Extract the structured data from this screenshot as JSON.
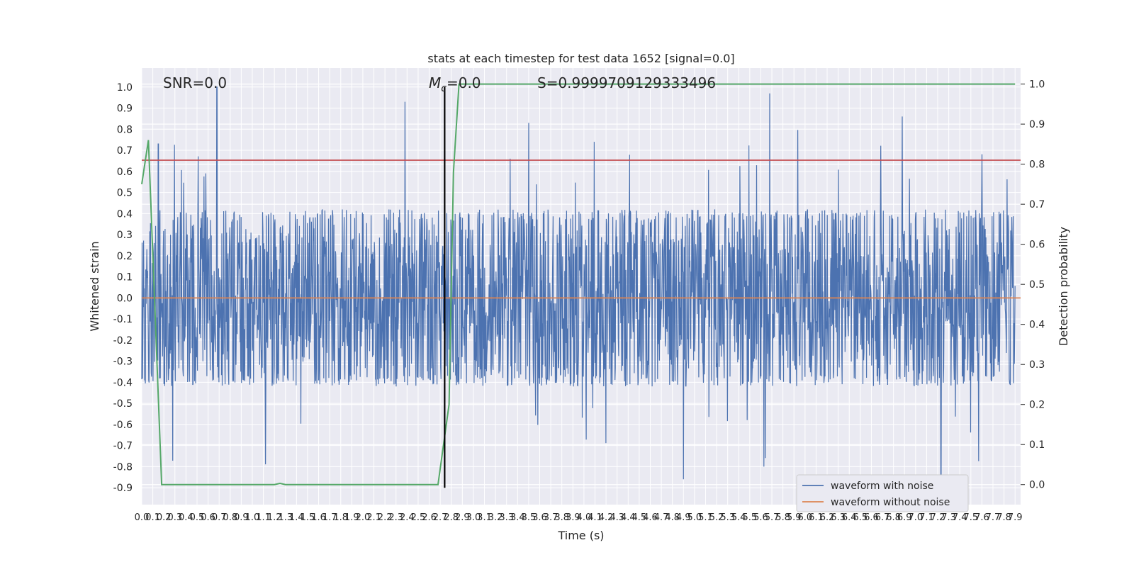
{
  "chart_data": {
    "type": "line",
    "title": "stats at each timestep for test data 1652 [signal=0.0]",
    "xlabel": "Time (s)",
    "ylabel": "Whitened strain",
    "y2label": "Detection probability",
    "xlim": [
      0.0,
      7.95
    ],
    "ylim": [
      -0.98,
      1.09
    ],
    "y2lim": [
      -0.05,
      1.04
    ],
    "x_ticks": [
      "0.0",
      "0.1",
      "0.2",
      "0.3",
      "0.4",
      "0.5",
      "0.6",
      "0.7",
      "0.8",
      "0.9",
      "1.0",
      "1.1",
      "1.2",
      "1.3",
      "1.4",
      "1.5",
      "1.6",
      "1.7",
      "1.8",
      "1.9",
      "2.0",
      "2.1",
      "2.2",
      "2.3",
      "2.4",
      "2.5",
      "2.6",
      "2.7",
      "2.8",
      "2.9",
      "3.0",
      "3.1",
      "3.2",
      "3.3",
      "3.4",
      "3.5",
      "3.6",
      "3.7",
      "3.8",
      "3.9",
      "4.0",
      "4.1",
      "4.2",
      "4.3",
      "4.4",
      "4.5",
      "4.6",
      "4.7",
      "4.8",
      "4.9",
      "5.0",
      "5.1",
      "5.2",
      "5.3",
      "5.4",
      "5.5",
      "5.6",
      "5.7",
      "5.8",
      "5.9",
      "6.0",
      "6.1",
      "6.2",
      "6.3",
      "6.4",
      "6.5",
      "6.6",
      "6.7",
      "6.8",
      "6.9",
      "7.0",
      "7.1",
      "7.2",
      "7.3",
      "7.4",
      "7.5",
      "7.6",
      "7.7",
      "7.8",
      "7.9"
    ],
    "y_ticks": [
      "1.0",
      "0.9",
      "0.8",
      "0.7",
      "0.6",
      "0.5",
      "0.4",
      "0.3",
      "0.2",
      "0.1",
      "0.0",
      "-0.1",
      "-0.2",
      "-0.3",
      "-0.4",
      "-0.5",
      "-0.6",
      "-0.7",
      "-0.8",
      "-0.9"
    ],
    "y2_ticks": [
      "1.0",
      "0.9",
      "0.8",
      "0.7",
      "0.6",
      "0.5",
      "0.4",
      "0.3",
      "0.2",
      "0.1",
      "0.0"
    ],
    "grid": true,
    "legend_position": "lower-right",
    "legend": [
      "waveform with noise",
      "waveform without noise"
    ],
    "annotations": {
      "snr": "SNR=0.0",
      "mc_symbol": "M",
      "mc_subscript": "c",
      "mc_value": "=0.0",
      "s": "S=0.9999709129333496"
    },
    "series": [
      {
        "name": "waveform with noise",
        "color": "#4c72b0",
        "note_envelope": {
          "typical_upper": 0.42,
          "typical_lower": -0.42,
          "peaks": [
            [
              0.68,
              1.0
            ],
            [
              2.38,
              0.93
            ],
            [
              5.68,
              0.97
            ],
            [
              6.88,
              0.86
            ],
            [
              3.5,
              0.83
            ],
            [
              7.23,
              -0.85
            ],
            [
              0.15,
              0.73
            ],
            [
              4.9,
              -0.86
            ]
          ]
        }
      },
      {
        "name": "waveform without noise",
        "color": "#dd8452",
        "y_constant": 0.0
      },
      {
        "name": "detection probability",
        "color": "#55a868",
        "axis": "right",
        "x": [
          0.0,
          0.06,
          0.18,
          0.3,
          1.2,
          1.25,
          1.3,
          1.4,
          2.68,
          2.78,
          2.82,
          2.87,
          7.9
        ],
        "y": [
          0.75,
          0.86,
          0.0,
          0.0,
          0.0,
          0.003,
          0.0,
          0.0,
          0.0,
          0.2,
          0.78,
          1.0,
          1.0
        ]
      },
      {
        "name": "threshold",
        "color": "#c44e52",
        "y_constant": 0.81
      },
      {
        "name": "marker",
        "color": "#000000",
        "x_constant": 2.74,
        "y_range": [
          -0.9,
          1.0
        ]
      }
    ]
  }
}
